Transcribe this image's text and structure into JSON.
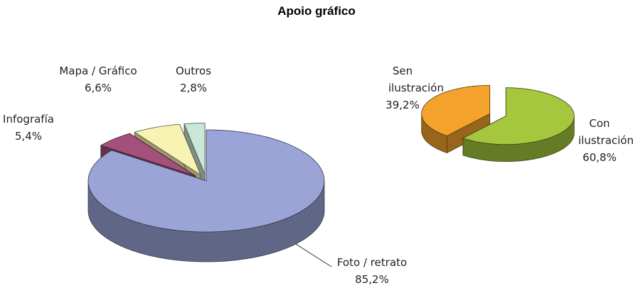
{
  "title": "Apoio gráfico",
  "chart_data": [
    {
      "type": "pie",
      "categories": [
        "Foto / retrato",
        "Infografía",
        "Mapa / Gráfico",
        "Outros"
      ],
      "values": [
        85.2,
        5.4,
        6.6,
        2.8
      ],
      "value_labels": [
        "85,2%",
        "5,4%",
        "6,6%",
        "2,8%"
      ],
      "colors": [
        "#9ba4d6",
        "#a3507c",
        "#f7f3b2",
        "#c9e7d7"
      ]
    },
    {
      "type": "pie",
      "categories": [
        "Con ilustración",
        "Sen ilustración"
      ],
      "values": [
        60.8,
        39.2
      ],
      "value_labels": [
        "60,8%",
        "39,2%"
      ],
      "colors": [
        "#a5c63d",
        "#f3a32b"
      ]
    }
  ]
}
